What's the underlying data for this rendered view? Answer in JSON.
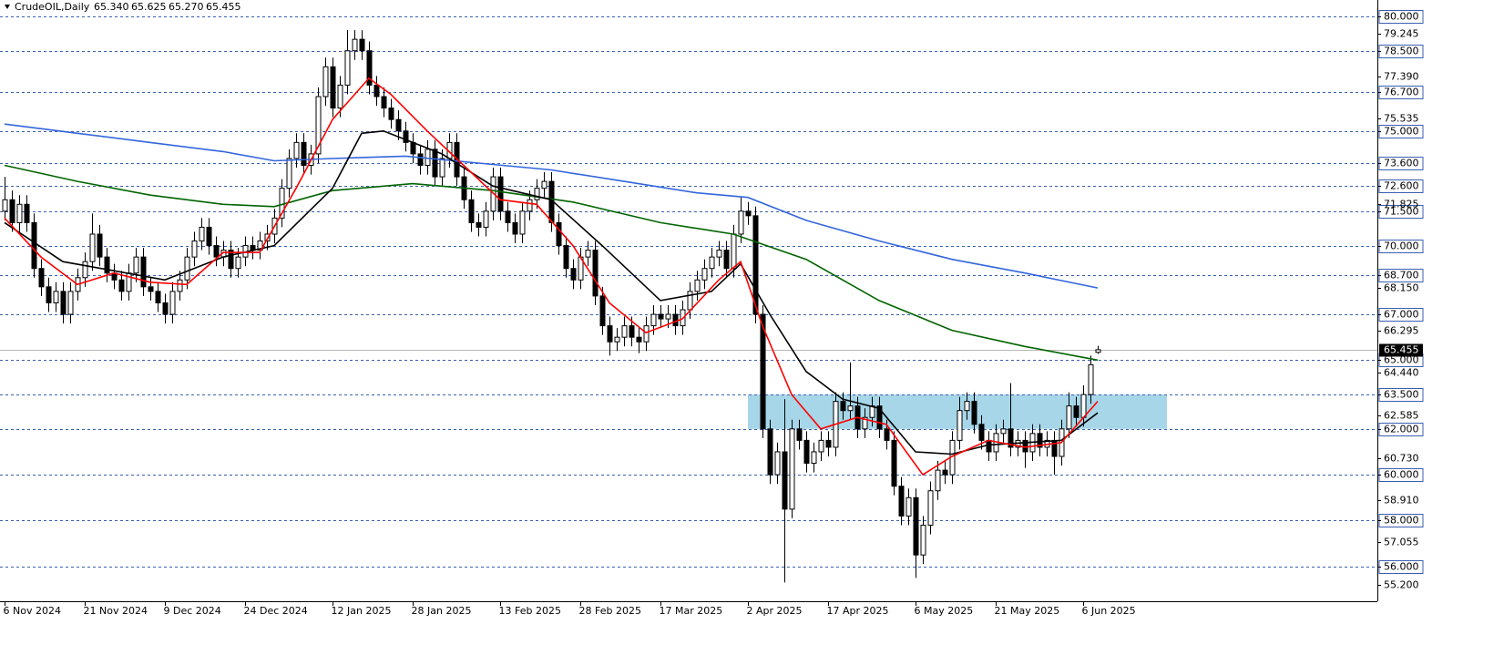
{
  "chart_data": {
    "type": "candlestick",
    "symbol": "CrudeOIL,Daily",
    "header_ohlc": [
      {
        "value": 65.34,
        "label": "65.340"
      },
      {
        "value": 65.625,
        "label": "65.625"
      },
      {
        "value": 65.27,
        "label": "65.270"
      },
      {
        "value": 65.455,
        "label": "65.455"
      }
    ],
    "up_color": "#ffffff",
    "down_color": "#000000",
    "open": [
      71.5,
      72.0,
      71.0,
      71.8,
      71.0,
      69.0,
      68.2,
      67.5,
      68.0,
      67.0,
      68.0,
      68.6,
      69.3,
      70.5,
      69.5,
      68.8,
      68.5,
      68.0,
      68.8,
      69.5,
      68.2,
      68.0,
      67.5,
      67.0,
      68.0,
      68.5,
      69.5,
      70.2,
      70.8,
      70.0,
      69.5,
      69.8,
      69.0,
      69.5,
      70.0,
      69.8,
      70.2,
      70.5,
      71.2,
      72.5,
      73.8,
      74.5,
      73.5,
      74.0,
      76.5,
      77.8,
      76.0,
      77.0,
      78.5,
      79.0,
      78.5,
      77.0,
      76.5,
      76.0,
      75.5,
      75.0,
      74.5,
      74.0,
      73.5,
      74.2,
      73.0,
      73.8,
      74.5,
      73.0,
      72.0,
      71.0,
      70.8,
      71.5,
      73.0,
      71.5,
      71.0,
      70.5,
      71.5,
      72.0,
      72.5,
      72.8,
      71.0,
      70.0,
      69.0,
      68.5,
      69.5,
      69.8,
      67.8,
      66.5,
      65.8,
      66.0,
      66.5,
      66.0,
      65.8,
      66.5,
      67.0,
      66.8,
      67.0,
      66.5,
      67.2,
      68.0,
      68.5,
      69.0,
      69.5,
      69.8,
      69.0,
      70.5,
      71.5,
      71.3,
      67.0,
      62.0,
      60.0,
      61.0,
      58.5,
      62.0,
      61.5,
      60.5,
      61.0,
      61.5,
      61.2,
      63.2,
      62.8,
      63.0,
      62.0,
      62.5,
      63.0,
      62.0,
      61.5,
      59.5,
      58.2,
      59.0,
      56.5,
      57.8,
      59.3,
      60.2,
      60.0,
      61.5,
      62.8,
      63.2,
      62.2,
      61.5,
      61.0,
      61.8,
      62.0,
      61.2,
      61.5,
      61.0,
      61.8,
      61.2,
      61.5,
      60.8,
      62.0,
      63.0,
      62.5,
      63.5,
      65.34
    ],
    "high": [
      73.0,
      72.4,
      72.2,
      72.2,
      71.4,
      69.4,
      68.6,
      68.4,
      68.4,
      68.4,
      69.0,
      69.7,
      71.4,
      70.9,
      69.9,
      69.2,
      68.9,
      69.2,
      69.9,
      69.9,
      68.6,
      68.4,
      67.9,
      68.4,
      68.9,
      69.9,
      70.6,
      71.2,
      71.2,
      70.4,
      70.2,
      70.2,
      69.9,
      70.4,
      70.4,
      70.6,
      70.9,
      71.6,
      72.9,
      74.2,
      74.9,
      74.9,
      74.4,
      76.9,
      78.2,
      78.2,
      77.4,
      79.4,
      79.4,
      79.4,
      78.9,
      77.4,
      76.9,
      76.4,
      75.9,
      75.4,
      74.9,
      74.4,
      74.6,
      74.6,
      74.2,
      74.9,
      74.9,
      73.4,
      72.4,
      71.4,
      71.9,
      73.4,
      73.4,
      71.9,
      71.4,
      71.9,
      72.4,
      72.9,
      73.2,
      73.2,
      71.4,
      70.4,
      69.4,
      69.9,
      70.2,
      70.2,
      68.2,
      66.9,
      66.4,
      66.9,
      66.9,
      66.4,
      66.9,
      67.4,
      67.4,
      67.4,
      67.4,
      67.6,
      68.4,
      68.9,
      69.4,
      69.9,
      70.2,
      70.2,
      70.9,
      72.1,
      71.9,
      71.7,
      67.4,
      62.4,
      61.4,
      63.3,
      62.4,
      62.4,
      61.9,
      61.4,
      61.9,
      61.9,
      63.6,
      63.6,
      64.9,
      63.4,
      62.9,
      63.4,
      63.4,
      62.4,
      61.9,
      59.9,
      59.4,
      59.4,
      58.2,
      59.7,
      60.6,
      60.6,
      61.9,
      63.4,
      63.6,
      63.6,
      62.6,
      61.9,
      62.2,
      62.4,
      64.0,
      61.9,
      61.9,
      62.2,
      62.2,
      61.9,
      61.9,
      62.4,
      63.6,
      63.4,
      63.9,
      65.2,
      65.625
    ],
    "low": [
      71.1,
      70.6,
      70.6,
      70.6,
      68.6,
      67.8,
      67.1,
      67.1,
      66.6,
      66.6,
      67.6,
      68.2,
      68.9,
      69.1,
      68.4,
      68.1,
      67.6,
      67.6,
      68.4,
      67.8,
      67.6,
      67.1,
      66.6,
      66.6,
      67.6,
      68.1,
      69.1,
      69.8,
      69.6,
      69.1,
      69.1,
      68.6,
      68.6,
      69.1,
      69.4,
      69.4,
      69.8,
      70.1,
      70.8,
      72.1,
      73.4,
      73.1,
      73.1,
      73.6,
      76.1,
      75.6,
      75.6,
      76.6,
      78.1,
      78.1,
      76.6,
      76.1,
      75.6,
      75.1,
      74.6,
      74.1,
      73.6,
      73.1,
      73.1,
      72.6,
      72.6,
      73.4,
      72.6,
      71.6,
      70.6,
      70.4,
      70.4,
      71.1,
      71.1,
      70.6,
      70.1,
      70.1,
      71.1,
      71.6,
      72.1,
      70.6,
      69.6,
      68.6,
      68.1,
      68.1,
      69.1,
      67.4,
      66.1,
      65.2,
      65.4,
      65.6,
      65.6,
      65.3,
      65.4,
      66.1,
      66.4,
      66.4,
      66.1,
      66.1,
      66.8,
      67.6,
      68.1,
      68.6,
      69.1,
      68.6,
      68.6,
      70.1,
      70.9,
      66.6,
      61.6,
      59.6,
      59.6,
      55.3,
      58.1,
      61.1,
      60.1,
      60.1,
      60.6,
      60.8,
      60.8,
      62.4,
      62.4,
      61.6,
      61.6,
      62.1,
      61.6,
      61.1,
      59.1,
      57.8,
      57.8,
      55.5,
      56.1,
      57.4,
      58.9,
      59.6,
      59.6,
      61.1,
      62.4,
      61.8,
      61.1,
      60.6,
      60.6,
      61.4,
      60.8,
      60.8,
      60.3,
      60.6,
      60.8,
      60.8,
      60.0,
      60.4,
      61.6,
      62.1,
      62.1,
      63.1,
      65.27
    ],
    "close": [
      72.0,
      71.0,
      71.8,
      71.0,
      69.0,
      68.2,
      67.5,
      68.0,
      67.0,
      68.0,
      68.6,
      69.3,
      70.5,
      69.5,
      68.8,
      68.5,
      68.0,
      68.8,
      69.5,
      68.2,
      68.0,
      67.5,
      67.0,
      68.0,
      68.5,
      69.5,
      70.2,
      70.8,
      70.0,
      69.5,
      69.8,
      69.0,
      69.5,
      70.0,
      69.8,
      70.2,
      70.5,
      71.2,
      72.5,
      73.8,
      74.5,
      73.5,
      74.0,
      76.5,
      77.8,
      76.0,
      77.0,
      78.5,
      79.0,
      78.5,
      77.0,
      76.5,
      76.0,
      75.5,
      75.0,
      74.5,
      74.0,
      73.5,
      74.2,
      73.0,
      73.8,
      74.5,
      73.0,
      72.0,
      71.0,
      70.8,
      71.5,
      73.0,
      71.5,
      71.0,
      70.5,
      71.5,
      72.0,
      72.5,
      72.8,
      71.0,
      70.0,
      69.0,
      68.5,
      69.5,
      69.8,
      67.8,
      66.5,
      65.8,
      66.0,
      66.5,
      66.0,
      65.8,
      66.5,
      67.0,
      66.8,
      67.0,
      66.5,
      67.2,
      68.0,
      68.5,
      69.0,
      69.5,
      69.8,
      69.0,
      70.5,
      71.5,
      71.3,
      67.0,
      62.0,
      60.0,
      61.0,
      58.5,
      62.0,
      61.5,
      60.5,
      61.0,
      61.5,
      61.2,
      63.2,
      62.8,
      63.0,
      62.0,
      62.5,
      63.0,
      62.0,
      61.5,
      59.5,
      58.2,
      59.0,
      56.5,
      57.8,
      59.3,
      60.2,
      60.0,
      61.5,
      62.8,
      63.2,
      62.2,
      61.5,
      61.0,
      61.8,
      62.0,
      61.2,
      61.5,
      61.0,
      61.8,
      61.2,
      61.5,
      60.8,
      62.0,
      63.0,
      62.5,
      63.5,
      64.8,
      65.455
    ],
    "lines": [
      {
        "color": "#3366dd",
        "x": [
          0,
          10,
          20,
          30,
          37,
          45,
          55,
          65,
          75,
          85,
          95,
          102,
          110,
          120,
          130,
          140,
          150
        ],
        "values": [
          75.3,
          74.9,
          74.5,
          74.1,
          73.7,
          73.8,
          73.9,
          73.6,
          73.3,
          72.8,
          72.3,
          72.1,
          71.1,
          70.2,
          69.4,
          68.8,
          68.15
        ]
      },
      {
        "color": "#006400",
        "x": [
          0,
          10,
          20,
          30,
          37,
          45,
          56,
          67,
          78,
          90,
          100,
          110,
          120,
          130,
          140,
          150
        ],
        "values": [
          73.5,
          72.8,
          72.2,
          71.8,
          71.7,
          72.4,
          72.7,
          72.4,
          71.9,
          71.0,
          70.5,
          69.4,
          67.6,
          66.3,
          65.6,
          65.0
        ]
      },
      {
        "color": "#000000",
        "x": [
          0,
          8,
          15,
          22,
          30,
          37,
          45,
          49,
          52,
          60,
          67,
          75,
          82,
          90,
          97,
          101,
          105,
          110,
          115,
          120,
          125,
          130,
          135,
          140,
          145,
          150
        ],
        "values": [
          71.0,
          69.3,
          68.9,
          68.5,
          69.5,
          70.0,
          72.5,
          74.9,
          75.0,
          74.0,
          72.6,
          72.0,
          70.0,
          67.6,
          68.0,
          69.2,
          67.0,
          64.5,
          63.3,
          62.9,
          61.0,
          60.9,
          61.3,
          61.4,
          61.5,
          62.7
        ]
      },
      {
        "color": "#ff0000",
        "x": [
          0,
          5,
          10,
          15,
          20,
          25,
          30,
          35,
          40,
          45,
          50,
          53,
          58,
          63,
          68,
          73,
          78,
          83,
          88,
          93,
          98,
          101,
          104,
          108,
          112,
          117,
          121,
          126,
          130,
          135,
          140,
          145,
          150
        ],
        "values": [
          71.2,
          69.5,
          68.3,
          68.8,
          68.4,
          68.3,
          69.7,
          69.7,
          72.5,
          75.5,
          77.3,
          76.6,
          75.0,
          73.5,
          72.0,
          71.8,
          70.0,
          67.5,
          66.2,
          66.8,
          68.5,
          69.3,
          66.5,
          63.5,
          62.0,
          62.5,
          62.2,
          60.0,
          60.8,
          61.5,
          61.2,
          61.4,
          63.2
        ]
      }
    ],
    "zone": {
      "x": [
        102,
        159.5
      ],
      "y": [
        62.0,
        63.5
      ],
      "color": "#a6d6e8"
    },
    "levels": [
      {
        "value": 80.0,
        "label": "80.000"
      },
      {
        "value": 78.5,
        "label": "78.500"
      },
      {
        "value": 76.7,
        "label": "76.700"
      },
      {
        "value": 75.0,
        "label": "75.000"
      },
      {
        "value": 73.6,
        "label": "73.600"
      },
      {
        "value": 72.6,
        "label": "72.600"
      },
      {
        "value": 71.5,
        "label": "71.500"
      },
      {
        "value": 70.0,
        "label": "70.000"
      },
      {
        "value": 68.7,
        "label": "68.700"
      },
      {
        "value": 67.0,
        "label": "67.000"
      },
      {
        "value": 65.0,
        "label": "65.000"
      },
      {
        "value": 63.5,
        "label": "63.500"
      },
      {
        "value": 62.0,
        "label": "62.000"
      },
      {
        "value": 60.0,
        "label": "60.000"
      },
      {
        "value": 58.0,
        "label": "58.000"
      },
      {
        "value": 56.0,
        "label": "56.000"
      }
    ],
    "level_color": "#3a5fb0",
    "yticks": [
      {
        "value": 79.245,
        "label": "79.245"
      },
      {
        "value": 77.39,
        "label": "77.390"
      },
      {
        "value": 75.535,
        "label": "75.535"
      },
      {
        "value": 71.825,
        "label": "71.825"
      },
      {
        "value": 68.15,
        "label": "68.150"
      },
      {
        "value": 66.295,
        "label": "66.295"
      },
      {
        "value": 64.44,
        "label": "64.440"
      },
      {
        "value": 62.585,
        "label": "62.585"
      },
      {
        "value": 60.73,
        "label": "60.730"
      },
      {
        "value": 58.91,
        "label": "58.910"
      },
      {
        "value": 57.055,
        "label": "57.055"
      },
      {
        "value": 55.2,
        "label": "55.200"
      }
    ],
    "last_price": {
      "value": 65.455,
      "label": "65.455"
    },
    "xticks": [
      {
        "value": 0,
        "label": "6 Nov 2024"
      },
      {
        "value": 11,
        "label": "21 Nov 2024"
      },
      {
        "value": 22,
        "label": "9 Dec 2024"
      },
      {
        "value": 33,
        "label": "24 Dec 2024"
      },
      {
        "value": 45,
        "label": "12 Jan 2025"
      },
      {
        "value": 56,
        "label": "28 Jan 2025"
      },
      {
        "value": 68,
        "label": "13 Feb 2025"
      },
      {
        "value": 79,
        "label": "28 Feb 2025"
      },
      {
        "value": 90,
        "label": "17 Mar 2025"
      },
      {
        "value": 102,
        "label": "2 Apr 2025"
      },
      {
        "value": 113,
        "label": "17 Apr 2025"
      },
      {
        "value": 125,
        "label": "6 May 2025"
      },
      {
        "value": 136,
        "label": "21 May 2025"
      },
      {
        "value": 148,
        "label": "6 Jun 2025"
      }
    ],
    "xlim": [
      -0.625,
      188.375
    ],
    "ylim": [
      54.48,
      80.715
    ]
  }
}
